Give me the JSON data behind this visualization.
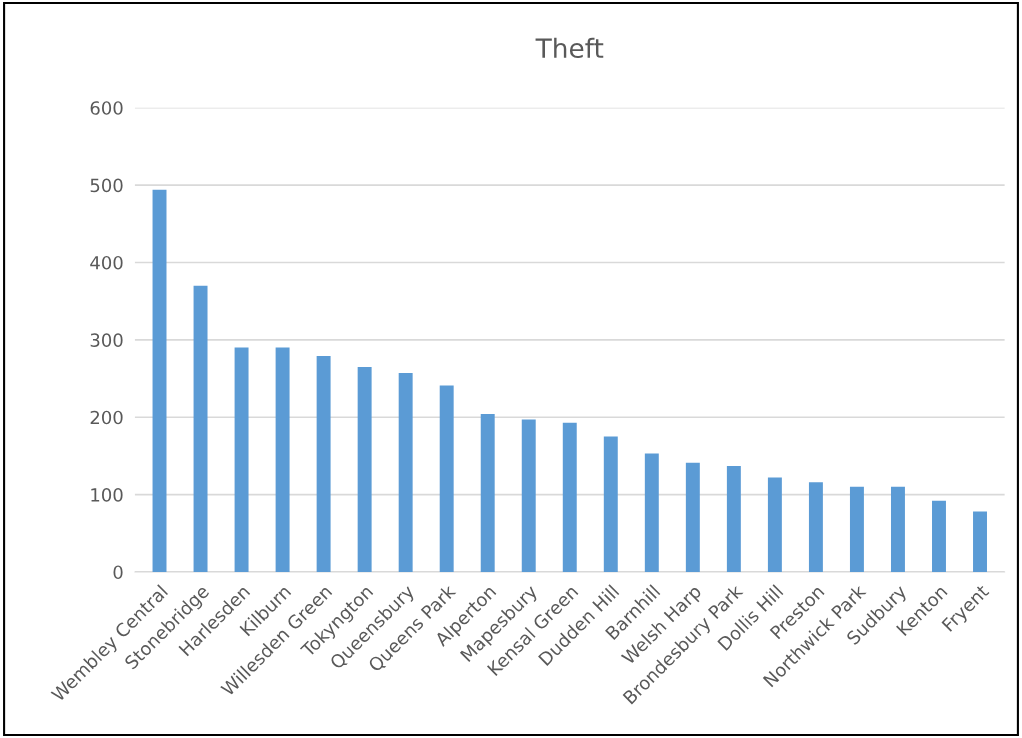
{
  "chart_data": {
    "type": "bar",
    "title": "Theft",
    "categories": [
      "Wembley Central",
      "Stonebridge",
      "Harlesden",
      "Kilburn",
      "Willesden Green",
      "Tokyngton",
      "Queensbury",
      "Queens Park",
      "Alperton",
      "Mapesbury",
      "Kensal Green",
      "Dudden Hill",
      "Barnhill",
      "Welsh Harp",
      "Brondesbury Park",
      "Dollis Hill",
      "Preston",
      "Northwick Park",
      "Sudbury",
      "Kenton",
      "Fryent"
    ],
    "values": [
      494,
      370,
      290,
      290,
      279,
      265,
      257,
      241,
      204,
      197,
      193,
      175,
      153,
      141,
      137,
      122,
      116,
      110,
      110,
      92,
      78
    ],
    "color": "#5b9bd5",
    "ylim": [
      0,
      600
    ],
    "yticks": [
      0,
      100,
      200,
      300,
      400,
      500,
      600
    ],
    "grid": "y"
  }
}
